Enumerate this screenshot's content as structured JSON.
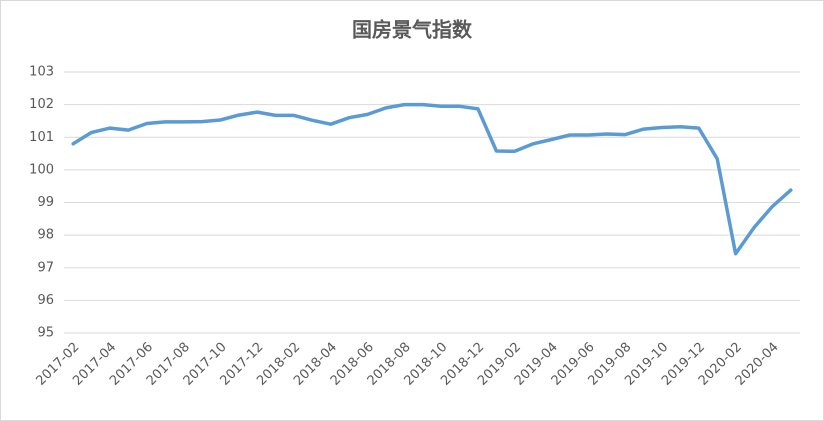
{
  "chart_data": {
    "type": "line",
    "title": "国房景气指数",
    "categories": [
      "2017-02",
      null,
      "2017-04",
      null,
      "2017-06",
      null,
      "2017-08",
      null,
      "2017-10",
      null,
      "2017-12",
      null,
      "2018-02",
      null,
      "2018-04",
      null,
      "2018-06",
      null,
      "2018-08",
      null,
      "2018-10",
      null,
      "2018-12",
      null,
      "2019-02",
      null,
      "2019-04",
      null,
      "2019-06",
      null,
      "2019-08",
      null,
      "2019-10",
      null,
      "2019-12",
      null,
      "2020-02",
      null,
      "2020-04",
      null
    ],
    "values": [
      100.8,
      101.15,
      101.28,
      101.22,
      101.42,
      101.47,
      101.47,
      101.48,
      101.53,
      101.68,
      101.77,
      101.67,
      101.67,
      101.52,
      101.4,
      101.6,
      101.7,
      101.9,
      102.0,
      102.0,
      101.95,
      101.95,
      101.87,
      100.58,
      100.57,
      100.8,
      100.93,
      101.07,
      101.07,
      101.1,
      101.08,
      101.25,
      101.3,
      101.32,
      101.28,
      100.34,
      97.43,
      98.23,
      98.88,
      99.38
    ],
    "color": "#5b9bd5",
    "ylim": [
      95,
      103
    ],
    "yticks": [
      95,
      96,
      97,
      98,
      99,
      100,
      101,
      102,
      103
    ],
    "grid": true
  }
}
